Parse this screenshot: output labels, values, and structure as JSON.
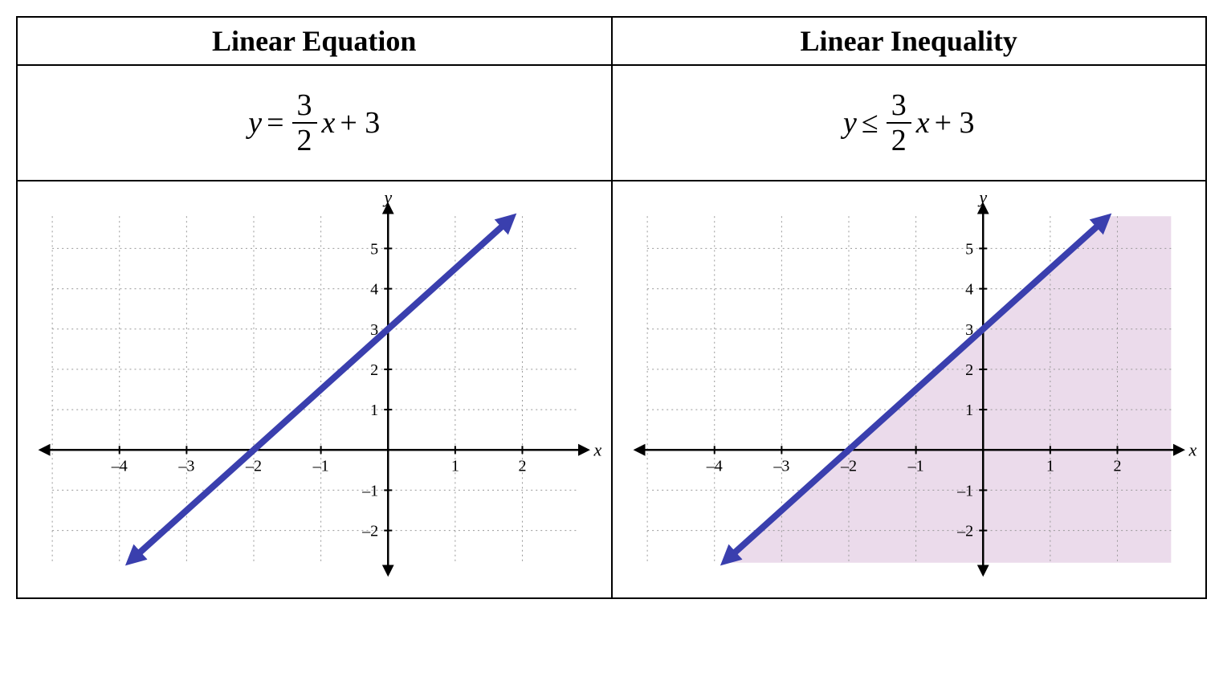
{
  "table": {
    "headers": {
      "left": "Linear Equation",
      "right": "Linear Inequality"
    },
    "header_fontsize": 36,
    "formula_fontsize": 38
  },
  "equation": {
    "lhs": "y",
    "relation": "=",
    "slope_num": "3",
    "slope_den": "2",
    "variable": "x",
    "intercept": "+ 3"
  },
  "inequality": {
    "lhs": "y",
    "relation": "≤",
    "slope_num": "3",
    "slope_den": "2",
    "variable": "x",
    "intercept": "+ 3"
  },
  "chart_common": {
    "xlim": [
      -5,
      2.8
    ],
    "ylim": [
      -2.8,
      5.8
    ],
    "x_ticks": [
      -4,
      -3,
      -2,
      -1,
      1,
      2
    ],
    "y_ticks": [
      -2,
      -1,
      1,
      2,
      3,
      4,
      5
    ],
    "x_axis_label": "x",
    "y_axis_label": "y",
    "axis_color": "#000000",
    "axis_width": 2.5,
    "grid_color": "#999999",
    "grid_dash": "2,4",
    "grid_width": 1,
    "line_color": "#3a3fae",
    "line_width": 8,
    "line_p1": [
      -4.7,
      -4.05
    ],
    "line_p2": [
      2.0,
      6.0
    ],
    "arrow_size": 16,
    "tick_fontsize": 20,
    "axis_label_fontsize": 22,
    "background_color": "#ffffff"
  },
  "chart_equation": {
    "shade": false
  },
  "chart_inequality": {
    "shade": true,
    "shade_color": "#e8d5e8",
    "shade_opacity": 0.85
  }
}
